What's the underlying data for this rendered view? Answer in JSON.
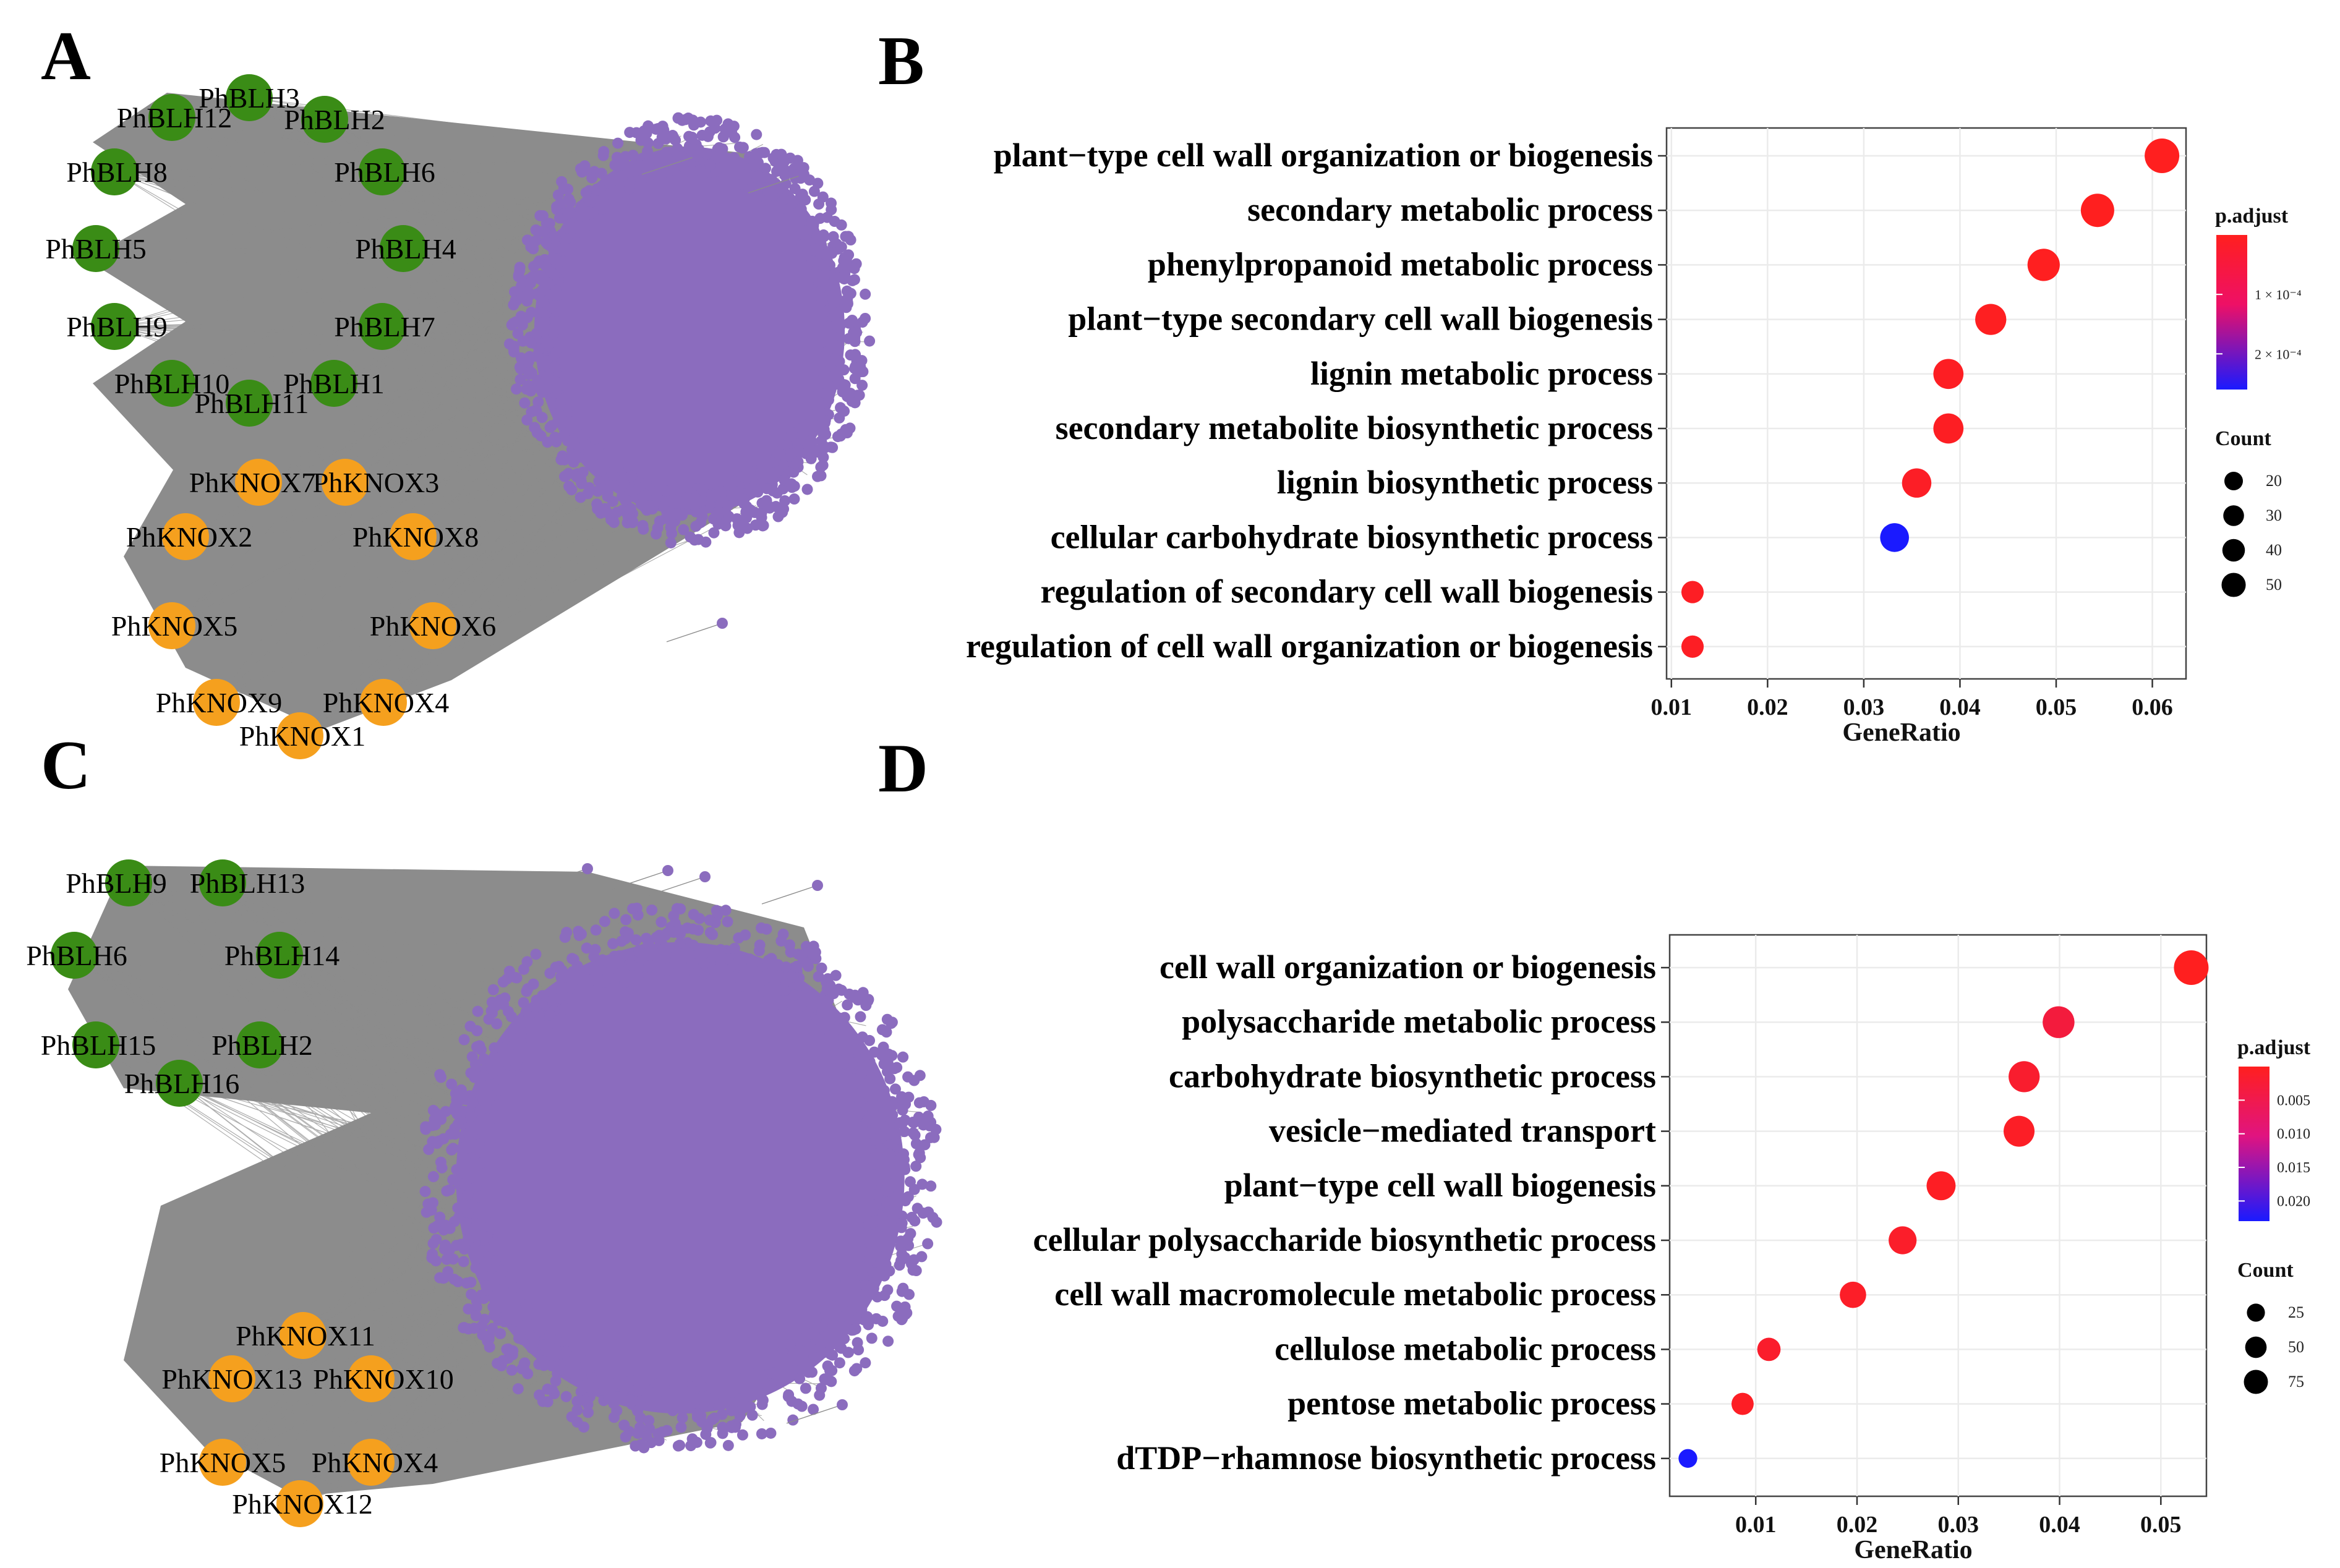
{
  "figure": {
    "panel_labels": [
      "A",
      "B",
      "C",
      "D"
    ]
  },
  "colors": {
    "blh_node": "#3a8c16",
    "knox_node": "#f5a01e",
    "target_node": "#8b6cbe",
    "edge": "#8c8c8c",
    "high_sig": "#ff1f1f",
    "low_sig": "#1a1aff",
    "grid": "#ebebeb"
  },
  "networks": [
    {
      "panel": "A",
      "blh_nodes": [
        "PhBLH3",
        "PhBLH12",
        "PhBLH2",
        "PhBLH8",
        "PhBLH6",
        "PhBLH5",
        "PhBLH4",
        "PhBLH9",
        "PhBLH7",
        "PhBLH10",
        "PhBLH1",
        "PhBLH11"
      ],
      "knox_nodes": [
        "PhKNOX7",
        "PhKNOX3",
        "PhKNOX2",
        "PhKNOX8",
        "PhKNOX5",
        "PhKNOX6",
        "PhKNOX9",
        "PhKNOX4",
        "PhKNOX1"
      ]
    },
    {
      "panel": "C",
      "blh_nodes": [
        "PhBLH9",
        "PhBLH13",
        "PhBLH6",
        "PhBLH14",
        "PhBLH15",
        "PhBLH2",
        "PhBLH16"
      ],
      "knox_nodes": [
        "PhKNOX11",
        "PhKNOX13",
        "PhKNOX10",
        "PhKNOX5",
        "PhKNOX4",
        "PhKNOX12"
      ]
    }
  ],
  "chart_data": [
    {
      "panel": "B",
      "type": "scatter",
      "xlabel": "GeneRatio",
      "xlim": [
        0.0095,
        0.0635
      ],
      "xticks": [
        "0.01",
        "0.02",
        "0.03",
        "0.04",
        "0.05",
        "0.06"
      ],
      "categories": [
        "plant−type cell wall organization or biogenesis",
        "secondary metabolic process",
        "phenylpropanoid metabolic process",
        "plant−type secondary cell wall biogenesis",
        "lignin metabolic process",
        "secondary metabolite biosynthetic process",
        "lignin biosynthetic process",
        "cellular carbohydrate biosynthetic process",
        "regulation of secondary cell wall biogenesis",
        "regulation of cell wall organization or biogenesis"
      ],
      "gene_ratio": [
        0.061,
        0.0543,
        0.0487,
        0.0432,
        0.0388,
        0.0388,
        0.0355,
        0.0332,
        0.0122,
        0.0122
      ],
      "count": [
        55,
        49,
        44,
        39,
        35,
        35,
        32,
        30,
        11,
        11
      ],
      "p_adjust": [
        4e-06,
        4e-06,
        6e-06,
        8e-06,
        1.1e-05,
        1.1e-05,
        1.6e-05,
        0.00029,
        1.2e-05,
        1.2e-05
      ],
      "legend_color_title": "p.adjust",
      "color_ticks": [
        "1 × 10⁻⁴",
        "2 × 10⁻⁴"
      ],
      "legend_size_title": "Count",
      "size_ticks": [
        "20",
        "30",
        "40",
        "50"
      ]
    },
    {
      "panel": "D",
      "type": "scatter",
      "xlabel": "GeneRatio",
      "xlim": [
        0.0015,
        0.0545
      ],
      "xticks": [
        "0.01",
        "0.02",
        "0.03",
        "0.04",
        "0.05"
      ],
      "categories": [
        "cell wall organization or biogenesis",
        "polysaccharide metabolic process",
        "carbohydrate biosynthetic process",
        "vesicle−mediated transport",
        "plant−type cell wall biogenesis",
        "cellular polysaccharide biosynthetic process",
        "cell wall macromolecule metabolic process",
        "cellulose metabolic process",
        "pentose metabolic process",
        "dTDP−rhamnose biosynthetic process"
      ],
      "gene_ratio": [
        0.053,
        0.0399,
        0.0365,
        0.036,
        0.0283,
        0.0245,
        0.0196,
        0.0113,
        0.0087,
        0.0033
      ],
      "count": [
        84,
        63,
        58,
        57,
        45,
        39,
        31,
        18,
        14,
        5
      ],
      "p_adjust": [
        0.0001,
        0.004,
        0.002,
        0.001,
        0.0008,
        0.0015,
        0.0012,
        0.0018,
        0.0009,
        0.023
      ],
      "legend_color_title": "p.adjust",
      "color_ticks": [
        "0.005",
        "0.010",
        "0.015",
        "0.020"
      ],
      "legend_size_title": "Count",
      "size_ticks": [
        "25",
        "50",
        "75"
      ]
    }
  ]
}
